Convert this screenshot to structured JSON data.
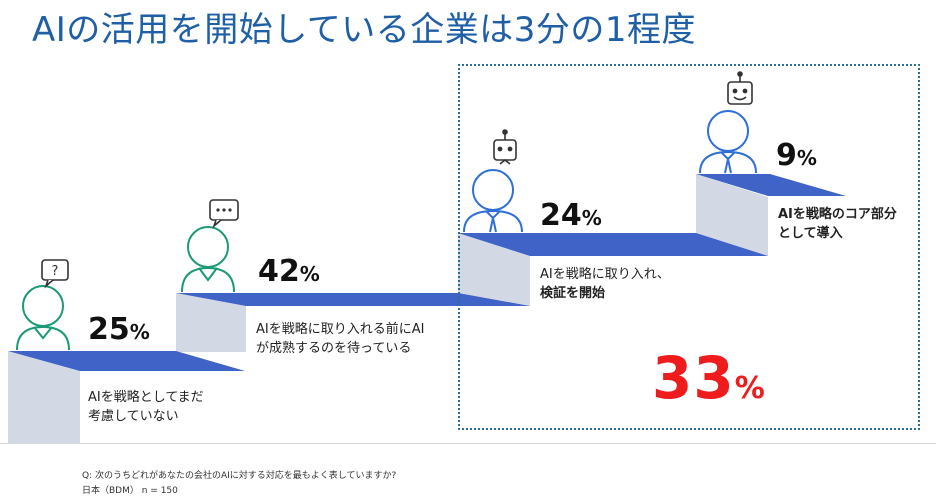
{
  "title": "AIの活用を開始している企業は3分の1程度",
  "chart_data": {
    "type": "bar",
    "categories": [
      "AIを戦略としてまだ考慮していない",
      "AIを戦略に取り入れる前にAIが成熟するのを待っている",
      "AIを戦略に取り入れ、検証を開始",
      "AIを戦略のコア部分として導入"
    ],
    "values": [
      25,
      42,
      24,
      9
    ],
    "unit": "%",
    "highlight_total": 33,
    "colors": {
      "step_top": "#3f63c6",
      "step_front": "#d3d9e4",
      "icon_teal": "#1b9a78",
      "icon_blue": "#2f6fd6",
      "highlight": "#ee1c1c"
    }
  },
  "steps": [
    {
      "value": "25",
      "unit": "%",
      "label_lines": [
        "AIを戦略としてまだ",
        "考慮していない"
      ],
      "bubble_icon": "question-bubble-icon"
    },
    {
      "value": "42",
      "unit": "%",
      "label_lines": [
        "AIを戦略に取り入れる前にAI",
        "が成熟するのを待っている"
      ],
      "bubble_icon": "ellipsis-bubble-icon"
    },
    {
      "value": "24",
      "unit": "%",
      "label_line1": "AIを戦略に取り入れ、",
      "label_line2": "検証を開始",
      "icon": "robot-icon"
    },
    {
      "value": "9",
      "unit": "%",
      "label_lines": [
        "AIを戦略のコア部分",
        "として導入"
      ],
      "icon": "robot-icon"
    }
  ],
  "highlight": {
    "value": "33",
    "unit": "%"
  },
  "footer": {
    "question": "Q: 次のうちどれがあなたの会社のAIに対する対応を最もよく表していますか?",
    "sample": "日本（BDM） n = 150"
  }
}
